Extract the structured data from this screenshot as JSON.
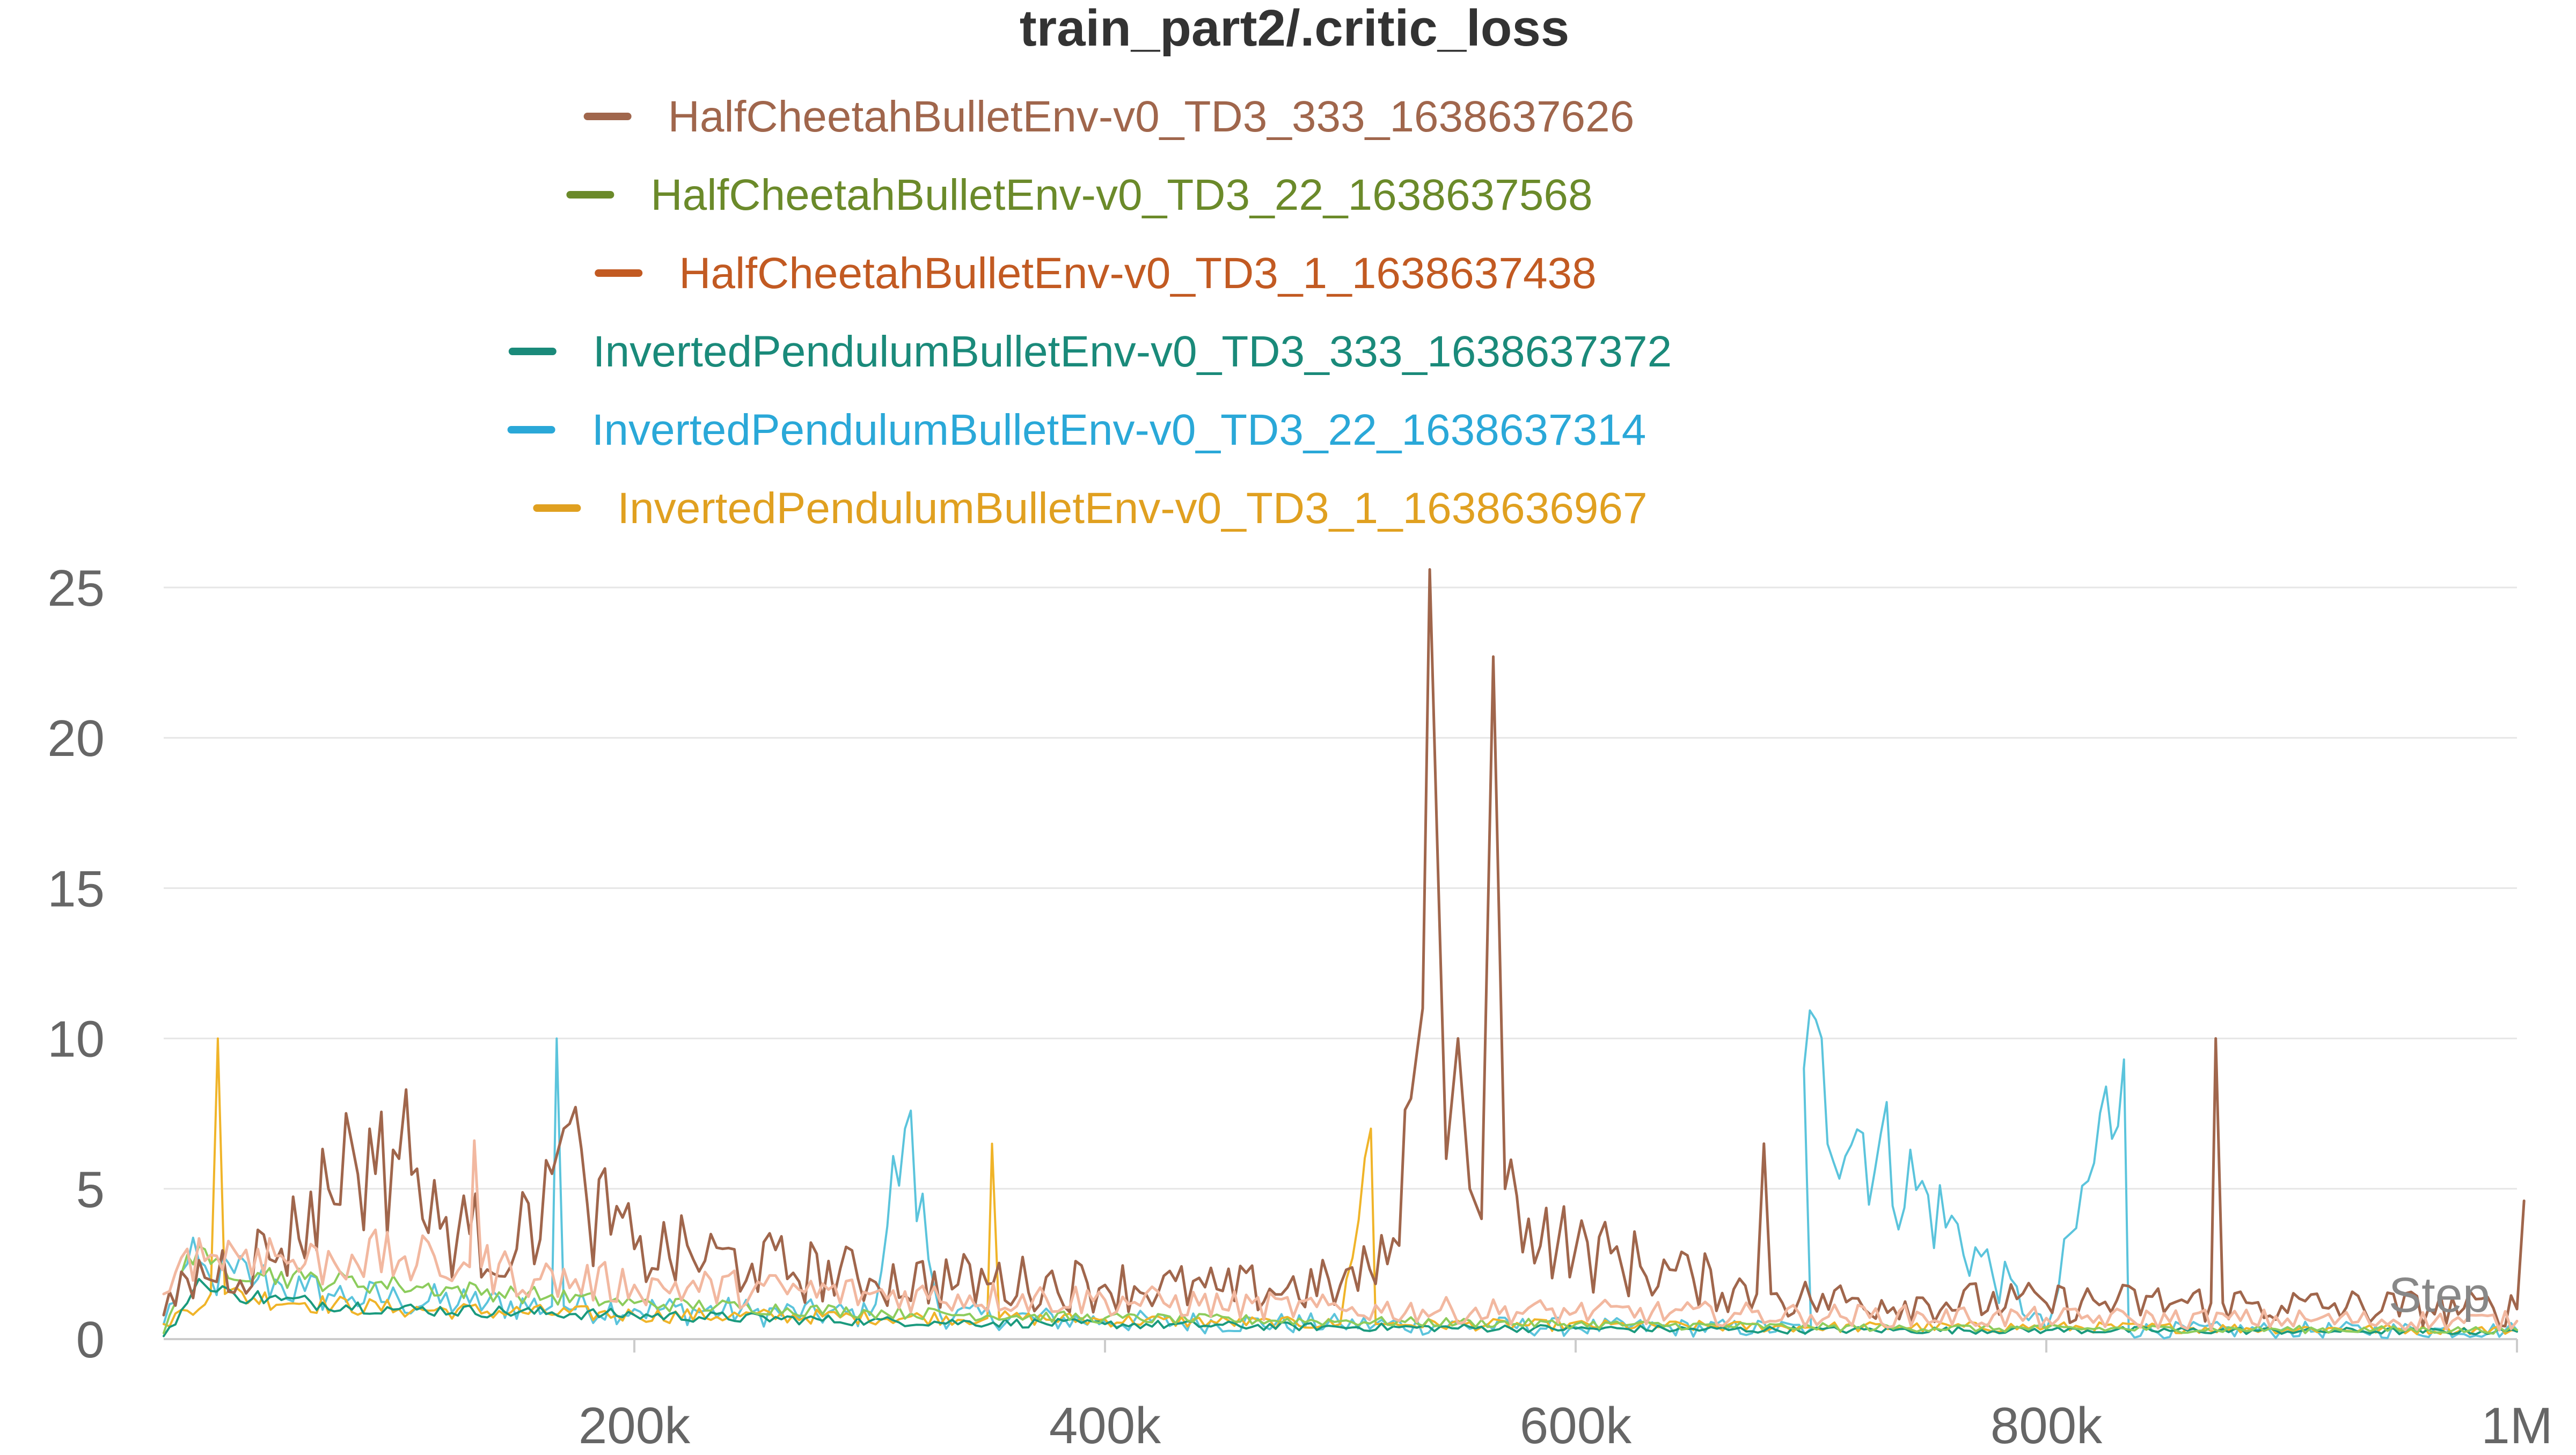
{
  "chart_data": {
    "type": "line",
    "title": "train_part2/.critic_loss",
    "xlabel": "Step",
    "ylabel": "",
    "xlim": [
      0,
      1000000
    ],
    "ylim": [
      0,
      25
    ],
    "x_ticks": [
      {
        "value": 200000,
        "label": "200k"
      },
      {
        "value": 400000,
        "label": "400k"
      },
      {
        "value": 600000,
        "label": "600k"
      },
      {
        "value": 800000,
        "label": "800k"
      },
      {
        "value": 1000000,
        "label": "1M"
      }
    ],
    "y_ticks": [
      {
        "value": 0,
        "label": "0"
      },
      {
        "value": 5,
        "label": "5"
      },
      {
        "value": 10,
        "label": "10"
      },
      {
        "value": 15,
        "label": "15"
      },
      {
        "value": 20,
        "label": "20"
      },
      {
        "value": 25,
        "label": "25"
      }
    ],
    "grid": true,
    "legend_position": "top",
    "legend": [
      {
        "name": "HalfCheetahBulletEnv-v0_TD3_333_1638637626",
        "color": "#a0664c"
      },
      {
        "name": "HalfCheetahBulletEnv-v0_TD3_22_1638637568",
        "color": "#6b8a2a"
      },
      {
        "name": "HalfCheetahBulletEnv-v0_TD3_1_1638637438",
        "color": "#c25a22"
      },
      {
        "name": "InvertedPendulumBulletEnv-v0_TD3_333_1638637372",
        "color": "#1a8a7a"
      },
      {
        "name": "InvertedPendulumBulletEnv-v0_TD3_22_1638637314",
        "color": "#2aa8d8"
      },
      {
        "name": "InvertedPendulumBulletEnv-v0_TD3_1_1638636967",
        "color": "#e0a020"
      }
    ],
    "series": [
      {
        "color": "#5bc4dc",
        "width": 4,
        "jitter": 0.35,
        "x": [
          0,
          10000,
          20000,
          30000,
          40000,
          50000,
          60000,
          70000,
          80000,
          100000,
          130000,
          165000,
          167000,
          170000,
          200000,
          250000,
          300000,
          315000,
          330000,
          400000,
          500000,
          600000,
          700000,
          697000,
          800000,
          833000,
          835000,
          900000,
          1000000
        ],
        "y": [
          0.5,
          2.5,
          2.0,
          2.2,
          2.0,
          1.8,
          1.6,
          1.5,
          1.4,
          1.3,
          1.2,
          1.1,
          10.0,
          1.1,
          1.0,
          0.9,
          0.8,
          7.0,
          0.8,
          0.6,
          0.5,
          0.4,
          0.35,
          9.0,
          0.3,
          9.3,
          0.3,
          0.3,
          0.3
        ]
      },
      {
        "color": "#f0b429",
        "width": 4,
        "jitter": 0.2,
        "x": [
          0,
          20000,
          23000,
          26000,
          60000,
          100000,
          200000,
          350000,
          352000,
          355000,
          500000,
          513000,
          515000,
          520000,
          700000,
          800000,
          1000000
        ],
        "y": [
          0.5,
          1.5,
          10.0,
          1.5,
          1.2,
          1.0,
          0.8,
          0.7,
          6.5,
          0.7,
          0.5,
          7.0,
          0.5,
          0.5,
          0.4,
          0.4,
          0.3
        ]
      },
      {
        "color": "#1a9a7e",
        "width": 4,
        "jitter": 0.15,
        "x": [
          0,
          10000,
          15000,
          20000,
          30000,
          50000,
          100000,
          200000,
          300000,
          400000,
          500000,
          600000,
          700000,
          800000,
          1000000
        ],
        "y": [
          0.1,
          1.2,
          2.0,
          1.6,
          1.5,
          1.3,
          1.0,
          0.8,
          0.6,
          0.5,
          0.4,
          0.35,
          0.3,
          0.3,
          0.25
        ]
      },
      {
        "color": "#8ccc5c",
        "width": 4,
        "jitter": 0.15,
        "x": [
          0,
          10000,
          20000,
          40000,
          60000,
          100000,
          150000,
          200000,
          300000,
          400000,
          500000,
          600000,
          700000,
          800000,
          1000000
        ],
        "y": [
          0.2,
          2.8,
          2.5,
          2.2,
          2.0,
          1.8,
          1.5,
          1.2,
          0.9,
          0.7,
          0.6,
          0.5,
          0.4,
          0.35,
          0.3
        ]
      },
      {
        "color": "#a0664c",
        "width": 5,
        "jitter": 0.4,
        "x": [
          0,
          10000,
          50000,
          70000,
          80000,
          90000,
          100000,
          103000,
          110000,
          130000,
          150000,
          165000,
          170000,
          180000,
          200000,
          250000,
          300000,
          400000,
          450000,
          500000,
          520000,
          530000,
          535000,
          538000,
          541000,
          545000,
          550000,
          555000,
          560000,
          565000,
          570000,
          580000,
          600000,
          650000,
          677000,
          680000,
          683000,
          700000,
          800000,
          870000,
          872000,
          875000,
          900000,
          1000000,
          1003000
        ],
        "y": [
          0.8,
          2.0,
          3.0,
          5.0,
          6.5,
          5.5,
          6.0,
          8.3,
          4.0,
          3.5,
          3.0,
          5.5,
          7.0,
          4.5,
          3.0,
          2.5,
          2.0,
          1.8,
          1.6,
          1.8,
          2.5,
          8.0,
          11.0,
          25.6,
          17.0,
          6.0,
          10.0,
          5.0,
          4.0,
          22.7,
          5.0,
          4.0,
          3.0,
          2.0,
          1.5,
          6.5,
          1.5,
          1.3,
          1.2,
          1.2,
          10.0,
          1.2,
          1.1,
          1.0,
          4.6
        ]
      },
      {
        "color": "#f2b8a0",
        "width": 5,
        "jitter": 0.3,
        "x": [
          0,
          10000,
          20000,
          40000,
          60000,
          80000,
          100000,
          130000,
          132000,
          135000,
          160000,
          200000,
          300000,
          400000,
          500000,
          600000,
          700000,
          800000,
          1000000
        ],
        "y": [
          1.5,
          3.0,
          2.8,
          3.0,
          2.5,
          2.8,
          2.6,
          2.4,
          6.6,
          2.4,
          2.0,
          1.8,
          1.5,
          1.3,
          1.0,
          0.9,
          0.8,
          0.7,
          0.6
        ]
      }
    ]
  }
}
